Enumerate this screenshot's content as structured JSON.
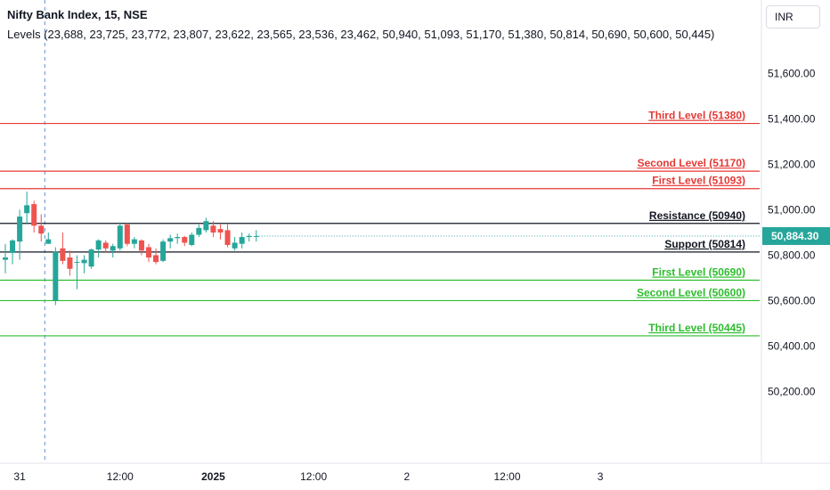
{
  "header": {
    "title": "Nifty Bank Index, 15, NSE",
    "levels_text": "Levels (23,688, 23,725, 23,772, 23,807, 23,622, 23,565, 23,536, 23,462, 50,940, 51,093, 51,170, 51,380, 50,814, 50,690, 50,600, 50,445)"
  },
  "currency": "INR",
  "last_price_label": "50,884.30",
  "colors": {
    "up": "#26a69a",
    "down": "#ef5350",
    "resistance": "#e53935",
    "support": "#2dbd2d",
    "pivot": "#131722",
    "cursor": "#5b8fd6"
  },
  "chart_data": {
    "type": "candlestick",
    "y_axis": {
      "min": 50080,
      "max": 51700,
      "ticks": [
        50200,
        50400,
        50600,
        50800,
        51000,
        51200,
        51400,
        51600
      ],
      "tick_labels": [
        "50,200.00",
        "50,400.00",
        "50,600.00",
        "50,800.00",
        "51,000.00",
        "51,200.00",
        "51,400.00",
        "51,600.00"
      ]
    },
    "x_axis": {
      "tick_labels": [
        "31",
        "12:00",
        "2025",
        "12:00",
        "2",
        "12:00",
        "3"
      ],
      "tick_positions": [
        2,
        16,
        29,
        43,
        56,
        70,
        83
      ]
    },
    "last_price": 50884.3,
    "levels": [
      {
        "label": "Third Level (51380)",
        "value": 51380,
        "kind": "resistance"
      },
      {
        "label": "Second Level (51170)",
        "value": 51170,
        "kind": "resistance"
      },
      {
        "label": "First Level (51093)",
        "value": 51093,
        "kind": "resistance"
      },
      {
        "label": "Resistance (50940)",
        "value": 50940,
        "kind": "pivot"
      },
      {
        "label": "Support (50814)",
        "value": 50814,
        "kind": "pivot"
      },
      {
        "label": "First Level (50690)",
        "value": 50690,
        "kind": "support"
      },
      {
        "label": "Second Level (50600)",
        "value": 50600,
        "kind": "support"
      },
      {
        "label": "Third Level (50445)",
        "value": 50445,
        "kind": "support"
      }
    ],
    "candles": [
      {
        "o": 50780,
        "h": 50850,
        "l": 50720,
        "c": 50790
      },
      {
        "o": 50810,
        "h": 50870,
        "l": 50760,
        "c": 50865
      },
      {
        "o": 50860,
        "h": 51000,
        "l": 50780,
        "c": 50970
      },
      {
        "o": 50985,
        "h": 51080,
        "l": 50940,
        "c": 51020
      },
      {
        "o": 51025,
        "h": 51040,
        "l": 50900,
        "c": 50930
      },
      {
        "o": 50930,
        "h": 50980,
        "l": 50860,
        "c": 50895
      },
      {
        "o": 50850,
        "h": 50900,
        "l": 50850,
        "c": 50870
      },
      {
        "o": 50600,
        "h": 50835,
        "l": 50580,
        "c": 50815
      },
      {
        "o": 50830,
        "h": 50900,
        "l": 50760,
        "c": 50775
      },
      {
        "o": 50790,
        "h": 50820,
        "l": 50710,
        "c": 50740
      },
      {
        "o": 50770,
        "h": 50800,
        "l": 50650,
        "c": 50770
      },
      {
        "o": 50765,
        "h": 50800,
        "l": 50720,
        "c": 50780
      },
      {
        "o": 50750,
        "h": 50830,
        "l": 50740,
        "c": 50825
      },
      {
        "o": 50825,
        "h": 50870,
        "l": 50790,
        "c": 50865
      },
      {
        "o": 50855,
        "h": 50865,
        "l": 50810,
        "c": 50830
      },
      {
        "o": 50820,
        "h": 50850,
        "l": 50790,
        "c": 50840
      },
      {
        "o": 50830,
        "h": 50945,
        "l": 50820,
        "c": 50930
      },
      {
        "o": 50935,
        "h": 50940,
        "l": 50840,
        "c": 50850
      },
      {
        "o": 50850,
        "h": 50880,
        "l": 50830,
        "c": 50870
      },
      {
        "o": 50865,
        "h": 50870,
        "l": 50800,
        "c": 50820
      },
      {
        "o": 50835,
        "h": 50850,
        "l": 50770,
        "c": 50790
      },
      {
        "o": 50800,
        "h": 50830,
        "l": 50760,
        "c": 50770
      },
      {
        "o": 50775,
        "h": 50870,
        "l": 50770,
        "c": 50860
      },
      {
        "o": 50860,
        "h": 50890,
        "l": 50830,
        "c": 50875
      },
      {
        "o": 50875,
        "h": 50895,
        "l": 50850,
        "c": 50880
      },
      {
        "o": 50880,
        "h": 50885,
        "l": 50840,
        "c": 50855
      },
      {
        "o": 50845,
        "h": 50900,
        "l": 50840,
        "c": 50890
      },
      {
        "o": 50890,
        "h": 50935,
        "l": 50880,
        "c": 50920
      },
      {
        "o": 50910,
        "h": 50965,
        "l": 50900,
        "c": 50950
      },
      {
        "o": 50930,
        "h": 50950,
        "l": 50880,
        "c": 50900
      },
      {
        "o": 50915,
        "h": 50935,
        "l": 50870,
        "c": 50900
      },
      {
        "o": 50910,
        "h": 50935,
        "l": 50835,
        "c": 50845
      },
      {
        "o": 50830,
        "h": 50880,
        "l": 50820,
        "c": 50855
      },
      {
        "o": 50850,
        "h": 50900,
        "l": 50830,
        "c": 50880
      },
      {
        "o": 50880,
        "h": 50895,
        "l": 50860,
        "c": 50885
      },
      {
        "o": 50882,
        "h": 50910,
        "l": 50860,
        "c": 50884.3
      }
    ]
  }
}
